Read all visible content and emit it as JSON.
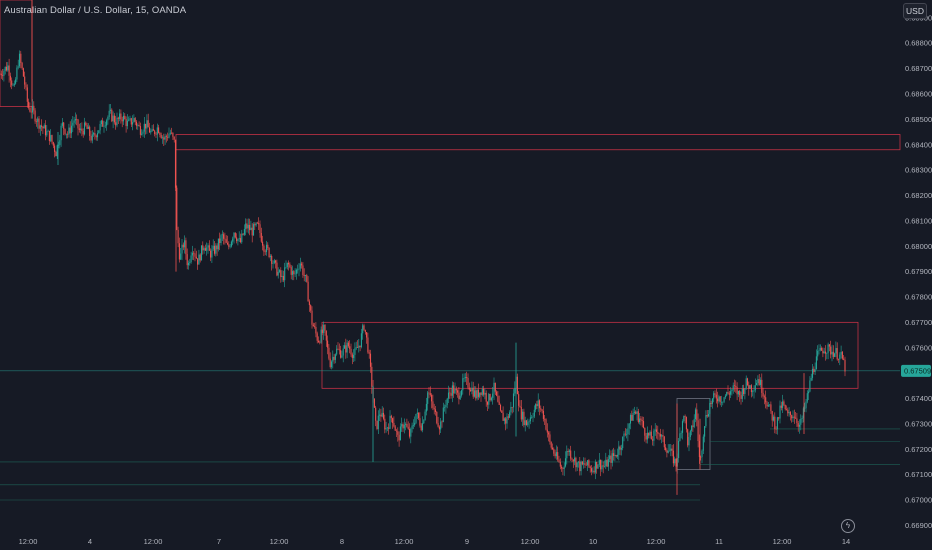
{
  "header": {
    "symbol_title": "Australian Dollar / U.S. Dollar, 15, OANDA",
    "currency": "USD"
  },
  "colors": {
    "background": "#161a25",
    "up": "#26a69a",
    "down": "#ef5350",
    "zone": "#e0364a",
    "level_line": "#1f6b5c",
    "price_tag": "#26a69a",
    "axis_text": "#b2b5be"
  },
  "icons": {
    "replay": "lightning-icon"
  },
  "chart_data": {
    "type": "candlestick",
    "instrument": "AUD/USD",
    "timeframe": "15",
    "y_axis": {
      "ticks": [
        0.669,
        0.67,
        0.671,
        0.672,
        0.673,
        0.674,
        0.675,
        0.676,
        0.677,
        0.678,
        0.679,
        0.68,
        0.681,
        0.682,
        0.683,
        0.684,
        0.685,
        0.686,
        0.687,
        0.688,
        0.689
      ],
      "tick_labels": [
        "0.66900",
        "0.67000",
        "0.67100",
        "0.67200",
        "0.67300",
        "0.67400",
        "",
        "0.67600",
        "0.67700",
        "0.67800",
        "0.67900",
        "0.68000",
        "0.68100",
        "0.68200",
        "0.68300",
        "0.68400",
        "0.68500",
        "0.68600",
        "0.68700",
        "0.68800",
        "0.68900"
      ],
      "range": [
        0.6687,
        0.6897
      ]
    },
    "x_axis": {
      "range": [
        0,
        900
      ],
      "ticks": [
        {
          "t": 28,
          "label": "12:00"
        },
        {
          "t": 90,
          "label": "4"
        },
        {
          "t": 153,
          "label": "12:00"
        },
        {
          "t": 219,
          "label": "7"
        },
        {
          "t": 279,
          "label": "12:00"
        },
        {
          "t": 342,
          "label": "8"
        },
        {
          "t": 404,
          "label": "12:00"
        },
        {
          "t": 467,
          "label": "9"
        },
        {
          "t": 530,
          "label": "12:00"
        },
        {
          "t": 593,
          "label": "10"
        },
        {
          "t": 656,
          "label": "12:00"
        },
        {
          "t": 719,
          "label": "11"
        },
        {
          "t": 782,
          "label": "12:00"
        },
        {
          "t": 846,
          "label": "14"
        }
      ]
    },
    "current_price": {
      "value": 0.67509,
      "label": "0.67509"
    },
    "price_path": [
      [
        0,
        0.6868
      ],
      [
        8,
        0.6871
      ],
      [
        14,
        0.6861
      ],
      [
        19,
        0.6875
      ],
      [
        24,
        0.6866
      ],
      [
        28,
        0.6855
      ],
      [
        33,
        0.6853
      ],
      [
        38,
        0.6849
      ],
      [
        44,
        0.6846
      ],
      [
        50,
        0.6843
      ],
      [
        56,
        0.6837
      ],
      [
        62,
        0.6848
      ],
      [
        68,
        0.6844
      ],
      [
        74,
        0.685
      ],
      [
        80,
        0.6845
      ],
      [
        86,
        0.6847
      ],
      [
        92,
        0.6842
      ],
      [
        98,
        0.6846
      ],
      [
        104,
        0.6849
      ],
      [
        110,
        0.6852
      ],
      [
        116,
        0.6849
      ],
      [
        122,
        0.6851
      ],
      [
        128,
        0.6848
      ],
      [
        134,
        0.685
      ],
      [
        140,
        0.6846
      ],
      [
        146,
        0.6848
      ],
      [
        152,
        0.6844
      ],
      [
        158,
        0.6847
      ],
      [
        164,
        0.6842
      ],
      [
        170,
        0.6845
      ],
      [
        175,
        0.684
      ],
      [
        176,
        0.6808
      ],
      [
        180,
        0.6795
      ],
      [
        184,
        0.6802
      ],
      [
        188,
        0.6792
      ],
      [
        192,
        0.68
      ],
      [
        198,
        0.6794
      ],
      [
        204,
        0.6801
      ],
      [
        210,
        0.6797
      ],
      [
        216,
        0.6799
      ],
      [
        222,
        0.6804
      ],
      [
        228,
        0.6799
      ],
      [
        234,
        0.6806
      ],
      [
        240,
        0.6801
      ],
      [
        246,
        0.6808
      ],
      [
        252,
        0.6806
      ],
      [
        258,
        0.6808
      ],
      [
        264,
        0.68
      ],
      [
        270,
        0.6797
      ],
      [
        276,
        0.6791
      ],
      [
        282,
        0.6787
      ],
      [
        288,
        0.6793
      ],
      [
        294,
        0.6788
      ],
      [
        300,
        0.6794
      ],
      [
        306,
        0.6786
      ],
      [
        312,
        0.677
      ],
      [
        318,
        0.6763
      ],
      [
        324,
        0.6767
      ],
      [
        330,
        0.6754
      ],
      [
        336,
        0.6759
      ],
      [
        342,
        0.6758
      ],
      [
        348,
        0.6761
      ],
      [
        354,
        0.6757
      ],
      [
        360,
        0.6762
      ],
      [
        364,
        0.6769
      ],
      [
        368,
        0.676
      ],
      [
        372,
        0.6745
      ],
      [
        376,
        0.6728
      ],
      [
        380,
        0.6735
      ],
      [
        386,
        0.6728
      ],
      [
        392,
        0.6733
      ],
      [
        398,
        0.6724
      ],
      [
        404,
        0.6731
      ],
      [
        410,
        0.6725
      ],
      [
        416,
        0.6734
      ],
      [
        422,
        0.6729
      ],
      [
        428,
        0.6743
      ],
      [
        434,
        0.6735
      ],
      [
        440,
        0.6729
      ],
      [
        446,
        0.6739
      ],
      [
        452,
        0.6744
      ],
      [
        458,
        0.6741
      ],
      [
        464,
        0.6747
      ],
      [
        470,
        0.6745
      ],
      [
        476,
        0.6741
      ],
      [
        482,
        0.6744
      ],
      [
        488,
        0.6739
      ],
      [
        494,
        0.6744
      ],
      [
        500,
        0.6734
      ],
      [
        506,
        0.6731
      ],
      [
        512,
        0.6737
      ],
      [
        516,
        0.6748
      ],
      [
        520,
        0.6735
      ],
      [
        526,
        0.673
      ],
      [
        532,
        0.6734
      ],
      [
        538,
        0.6738
      ],
      [
        544,
        0.6733
      ],
      [
        550,
        0.6722
      ],
      [
        556,
        0.6717
      ],
      [
        562,
        0.6712
      ],
      [
        568,
        0.672
      ],
      [
        574,
        0.6716
      ],
      [
        580,
        0.6713
      ],
      [
        586,
        0.6714
      ],
      [
        592,
        0.6712
      ],
      [
        598,
        0.6715
      ],
      [
        604,
        0.6713
      ],
      [
        610,
        0.6716
      ],
      [
        616,
        0.6718
      ],
      [
        622,
        0.6723
      ],
      [
        628,
        0.6729
      ],
      [
        634,
        0.6735
      ],
      [
        640,
        0.6732
      ],
      [
        646,
        0.6726
      ],
      [
        652,
        0.6724
      ],
      [
        658,
        0.6728
      ],
      [
        664,
        0.6722
      ],
      [
        670,
        0.6719
      ],
      [
        676,
        0.6714
      ],
      [
        680,
        0.6726
      ],
      [
        684,
        0.6735
      ],
      [
        688,
        0.6722
      ],
      [
        692,
        0.6728
      ],
      [
        696,
        0.6736
      ],
      [
        700,
        0.6713
      ],
      [
        704,
        0.673
      ],
      [
        710,
        0.6738
      ],
      [
        716,
        0.6741
      ],
      [
        722,
        0.674
      ],
      [
        728,
        0.6742
      ],
      [
        734,
        0.6744
      ],
      [
        740,
        0.6741
      ],
      [
        746,
        0.6746
      ],
      [
        752,
        0.6744
      ],
      [
        758,
        0.6748
      ],
      [
        764,
        0.6742
      ],
      [
        770,
        0.6735
      ],
      [
        776,
        0.6729
      ],
      [
        782,
        0.6738
      ],
      [
        788,
        0.6733
      ],
      [
        794,
        0.6734
      ],
      [
        800,
        0.6729
      ],
      [
        806,
        0.6738
      ],
      [
        812,
        0.675
      ],
      [
        818,
        0.6757
      ],
      [
        824,
        0.676
      ],
      [
        830,
        0.6759
      ],
      [
        836,
        0.6758
      ],
      [
        842,
        0.6756
      ],
      [
        846,
        0.6751
      ]
    ],
    "spikes": [
      {
        "t": 32,
        "high": 0.6897,
        "low": 0.6857
      },
      {
        "t": 58,
        "high": 0.6845,
        "low": 0.6832
      },
      {
        "t": 176,
        "high": 0.6842,
        "low": 0.679
      },
      {
        "t": 373,
        "high": 0.6745,
        "low": 0.6715
      },
      {
        "t": 516,
        "high": 0.6762,
        "low": 0.6725
      },
      {
        "t": 677,
        "high": 0.6738,
        "low": 0.6702
      },
      {
        "t": 700,
        "high": 0.6732,
        "low": 0.6712
      },
      {
        "t": 804,
        "high": 0.675,
        "low": 0.6726
      }
    ],
    "zones": [
      {
        "t1": 0,
        "t2": 32,
        "y1": 0.6897,
        "y2": 0.6855,
        "color": "#e0364a"
      },
      {
        "t1": 176,
        "t2": 900,
        "y1": 0.6844,
        "y2": 0.6838,
        "color": "#e0364a"
      },
      {
        "t1": 322,
        "t2": 858,
        "y1": 0.677,
        "y2": 0.6744,
        "color": "#e0364a"
      },
      {
        "t1": 677,
        "t2": 710,
        "y1": 0.674,
        "y2": 0.6712,
        "color": "#7c8190"
      }
    ],
    "levels": [
      {
        "t1": 0,
        "t2": 700,
        "y": 0.6706
      },
      {
        "t1": 0,
        "t2": 700,
        "y": 0.67
      },
      {
        "t1": 0,
        "t2": 620,
        "y": 0.6715
      },
      {
        "t1": 700,
        "t2": 900,
        "y": 0.6714
      },
      {
        "t1": 710,
        "t2": 900,
        "y": 0.6723
      },
      {
        "t1": 770,
        "t2": 900,
        "y": 0.6728
      }
    ]
  }
}
